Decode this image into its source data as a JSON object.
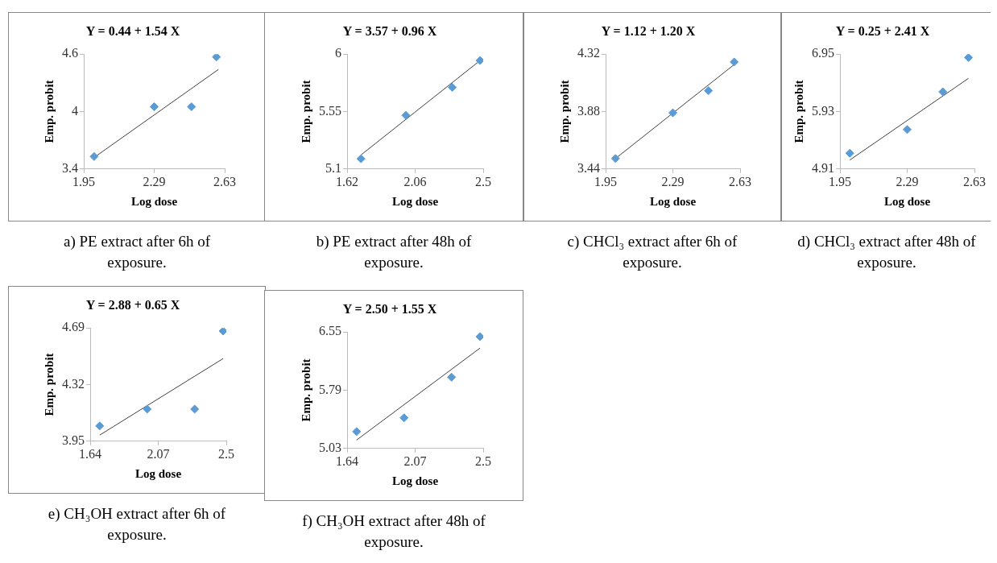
{
  "chart_data": [
    {
      "type": "scatter",
      "title": "Y = 0.44 + 1.54 X",
      "xlabel": "Log dose",
      "ylabel": "Emp. probit",
      "xlim": [
        1.95,
        2.63
      ],
      "xticks": [
        1.95,
        2.29,
        2.63
      ],
      "ylim": [
        3.4,
        4.6
      ],
      "yticks": [
        3.4,
        4,
        4.6
      ],
      "marker": "diamond",
      "series": [
        {
          "type": "scatter",
          "color": "#5b9bd5",
          "x": [
            2.0,
            2.29,
            2.47,
            2.59
          ],
          "values": [
            3.53,
            4.05,
            4.05,
            4.57
          ]
        },
        {
          "type": "line",
          "color": "#404040",
          "marker": "none",
          "x": [
            2.0,
            2.6
          ],
          "values": [
            3.52,
            4.44
          ]
        }
      ],
      "annotations": [
        "a) PE extract after  6h of exposure."
      ]
    },
    {
      "type": "scatter",
      "title": "Y = 3.57 + 0.96 X",
      "xlabel": "Log dose",
      "ylabel": "Emp. probit",
      "xlim": [
        1.62,
        2.5
      ],
      "xticks": [
        1.62,
        2.06,
        2.5
      ],
      "ylim": [
        5.1,
        6
      ],
      "yticks": [
        5.1,
        5.55,
        6
      ],
      "marker": "diamond",
      "series": [
        {
          "type": "scatter",
          "color": "#5b9bd5",
          "x": [
            1.71,
            2.0,
            2.3,
            2.48
          ],
          "values": [
            5.18,
            5.52,
            5.74,
            5.95
          ]
        },
        {
          "type": "line",
          "color": "#404040",
          "marker": "none",
          "x": [
            1.71,
            2.48
          ],
          "values": [
            5.21,
            5.95
          ]
        }
      ],
      "annotations": [
        "b) PE extract after 48h of exposure."
      ]
    },
    {
      "type": "scatter",
      "title": "Y = 1.12 + 1.20 X",
      "xlabel": "Log dose",
      "ylabel": "Emp. probit",
      "xlim": [
        1.95,
        2.63
      ],
      "xticks": [
        1.95,
        2.29,
        2.63
      ],
      "ylim": [
        3.44,
        4.32
      ],
      "yticks": [
        3.44,
        3.88,
        4.32
      ],
      "marker": "diamond",
      "series": [
        {
          "type": "scatter",
          "color": "#5b9bd5",
          "x": [
            2.0,
            2.29,
            2.47,
            2.6
          ],
          "values": [
            3.52,
            3.87,
            4.04,
            4.26
          ]
        },
        {
          "type": "line",
          "color": "#404040",
          "marker": "none",
          "x": [
            2.0,
            2.6
          ],
          "values": [
            3.52,
            4.24
          ]
        }
      ],
      "annotations": [
        "c) CHCl₃ extract after 6h of exposure."
      ]
    },
    {
      "type": "scatter",
      "title": "Y = 0.25 + 2.41 X",
      "xlabel": "Log dose",
      "ylabel": "Emp. probit",
      "xlim": [
        1.95,
        2.63
      ],
      "xticks": [
        1.95,
        2.29,
        2.63
      ],
      "ylim": [
        4.91,
        6.95
      ],
      "yticks": [
        4.91,
        5.93,
        6.95
      ],
      "marker": "diamond",
      "series": [
        {
          "type": "scatter",
          "color": "#5b9bd5",
          "x": [
            2.0,
            2.29,
            2.47,
            2.6
          ],
          "values": [
            5.19,
            5.61,
            6.28,
            6.89
          ]
        },
        {
          "type": "line",
          "color": "#404040",
          "marker": "none",
          "x": [
            2.0,
            2.6
          ],
          "values": [
            5.07,
            6.52
          ]
        }
      ],
      "annotations": [
        "d) CHCl₃ extract after 48h of exposure."
      ]
    },
    {
      "type": "scatter",
      "title": "Y = 2.88 + 0.65 X",
      "xlabel": "Log dose",
      "ylabel": "Emp. probit",
      "xlim": [
        1.64,
        2.5
      ],
      "xticks": [
        1.64,
        2.07,
        2.5
      ],
      "ylim": [
        3.95,
        4.69
      ],
      "yticks": [
        3.95,
        4.32,
        4.69
      ],
      "marker": "diamond",
      "series": [
        {
          "type": "scatter",
          "color": "#5b9bd5",
          "x": [
            1.7,
            2.0,
            2.3,
            2.48
          ],
          "values": [
            4.05,
            4.16,
            4.16,
            4.67
          ]
        },
        {
          "type": "line",
          "color": "#404040",
          "marker": "none",
          "x": [
            1.7,
            2.48
          ],
          "values": [
            3.99,
            4.49
          ]
        }
      ],
      "annotations": [
        "e) CH₃OH extract after 6h of exposure."
      ]
    },
    {
      "type": "scatter",
      "title": "Y = 2.50 + 1.55 X",
      "xlabel": "Log dose",
      "ylabel": "Emp. probit",
      "xlim": [
        1.64,
        2.5
      ],
      "xticks": [
        1.64,
        2.07,
        2.5
      ],
      "ylim": [
        5.03,
        6.55
      ],
      "yticks": [
        5.03,
        5.79,
        6.55
      ],
      "marker": "diamond",
      "series": [
        {
          "type": "scatter",
          "color": "#5b9bd5",
          "x": [
            1.7,
            2.0,
            2.3,
            2.48
          ],
          "values": [
            5.25,
            5.43,
            5.96,
            6.49
          ]
        },
        {
          "type": "line",
          "color": "#404040",
          "marker": "none",
          "x": [
            1.7,
            2.48
          ],
          "values": [
            5.14,
            6.34
          ]
        }
      ],
      "annotations": [
        "f) CH₃OH extract after 48h of exposure."
      ]
    }
  ]
}
